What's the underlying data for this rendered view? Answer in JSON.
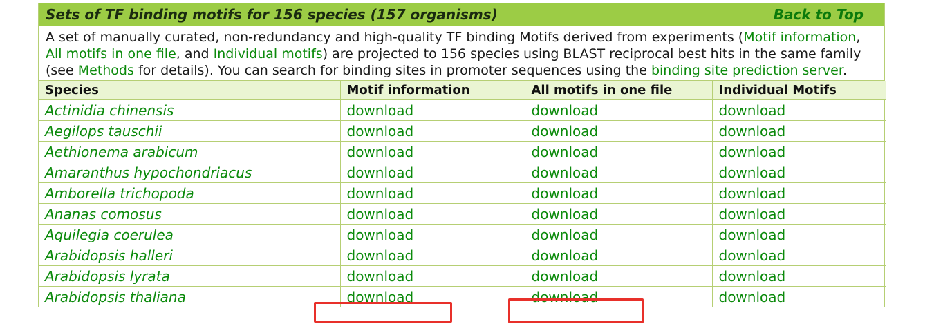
{
  "header": {
    "title": "Sets of TF binding motifs for 156 species (157 organisms)",
    "back_to_top": "Back to Top"
  },
  "intro": {
    "text1": "A set of manually curated, non-redundancy and high-quality TF binding Motifs derived from experiments (",
    "link_motif_info": "Motif information",
    "text2": ", ",
    "link_all_motifs": "All motifs in one file",
    "text3": ", and ",
    "link_individual": "Individual motifs",
    "text4": ") are projected to 156 species using BLAST reciprocal best hits in the same family (see ",
    "link_methods": "Methods",
    "text5": " for details). You can search for binding sites in promoter sequences using the ",
    "link_server": "binding site prediction server",
    "text6": "."
  },
  "table": {
    "columns": [
      "Species",
      "Motif information",
      "All motifs in one file",
      "Individual Motifs"
    ],
    "download_label": "download",
    "rows": [
      {
        "species": "Actinidia chinensis"
      },
      {
        "species": "Aegilops tauschii"
      },
      {
        "species": "Aethionema arabicum"
      },
      {
        "species": "Amaranthus hypochondriacus"
      },
      {
        "species": "Amborella trichopoda"
      },
      {
        "species": "Ananas comosus"
      },
      {
        "species": "Aquilegia coerulea"
      },
      {
        "species": "Arabidopsis halleri"
      },
      {
        "species": "Arabidopsis lyrata"
      },
      {
        "species": "Arabidopsis thaliana"
      }
    ]
  },
  "colors": {
    "header_bg": "#9ccc45",
    "link": "#0b8a0b",
    "border": "#b6cf74",
    "highlight": "#e8302a"
  }
}
